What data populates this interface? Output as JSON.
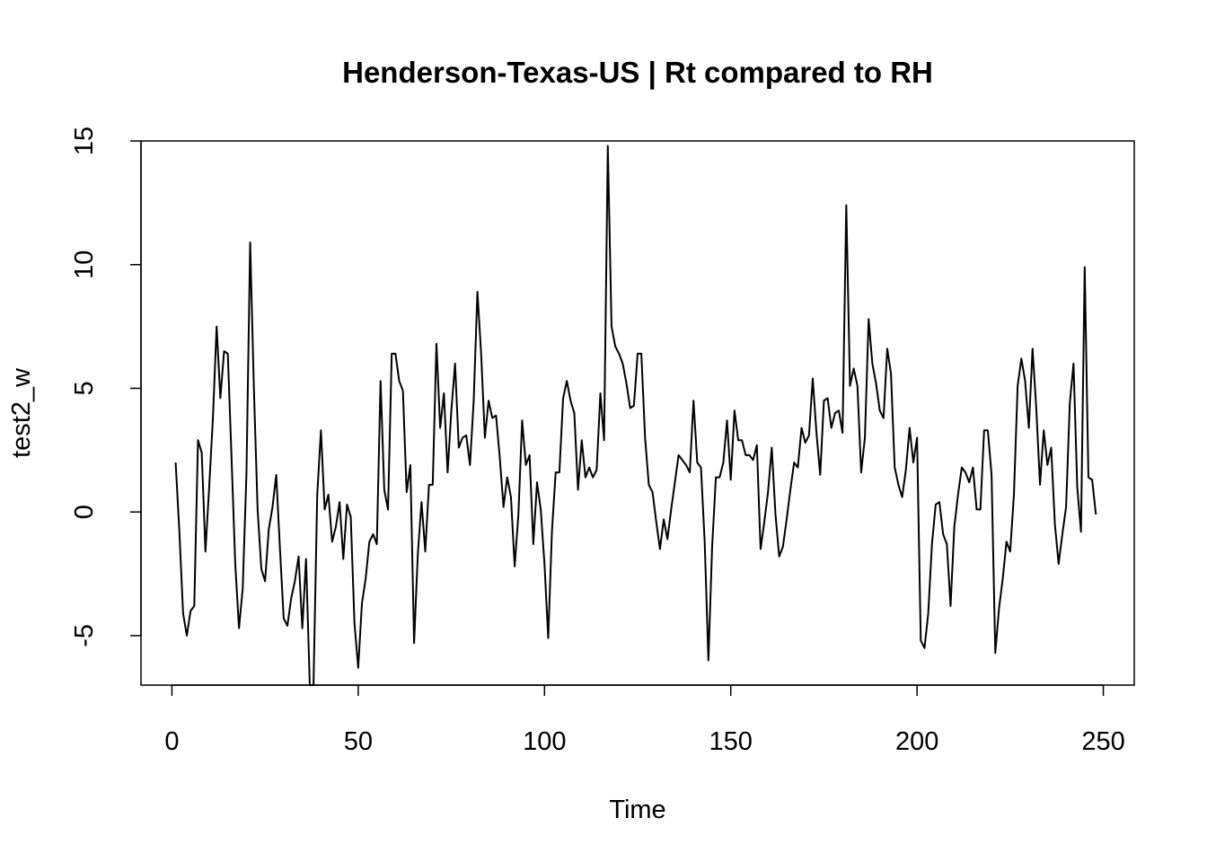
{
  "chart_data": {
    "type": "line",
    "title": "Henderson-Texas-US | Rt compared to RH",
    "xlabel": "Time",
    "ylabel": "test2_w",
    "xlim": [
      -8.3,
      258.3
    ],
    "ylim": [
      -7.0,
      15.0
    ],
    "x_ticks": [
      0,
      50,
      100,
      150,
      200,
      250
    ],
    "x_tick_labels": [
      "0",
      "50",
      "100",
      "150",
      "200",
      "250"
    ],
    "y_ticks": [
      -5,
      0,
      5,
      10,
      15
    ],
    "y_tick_labels": [
      "-5",
      "0",
      "5",
      "10",
      "15"
    ],
    "grid": false,
    "legend": "none",
    "line_color": "#000000",
    "x_start": 1,
    "x_step": 1,
    "values": [
      2.0,
      -0.8,
      -4.1,
      -5.0,
      -4.0,
      -3.8,
      2.9,
      2.4,
      -1.6,
      1.0,
      3.8,
      7.5,
      4.6,
      6.5,
      6.4,
      2.2,
      -2.1,
      -4.7,
      -3.1,
      1.5,
      10.9,
      5.0,
      0.1,
      -2.3,
      -2.8,
      -0.7,
      0.2,
      1.5,
      -1.5,
      -4.3,
      -4.6,
      -3.5,
      -2.8,
      -1.8,
      -4.7,
      -1.9,
      -7.0,
      -7.0,
      0.7,
      3.3,
      0.1,
      0.7,
      -1.2,
      -0.6,
      0.4,
      -1.9,
      0.3,
      -0.2,
      -4.5,
      -6.3,
      -3.7,
      -2.7,
      -1.2,
      -0.9,
      -1.3,
      5.3,
      0.9,
      0.1,
      6.4,
      6.4,
      5.3,
      4.9,
      0.8,
      1.9,
      -5.3,
      -1.7,
      0.4,
      -1.6,
      1.1,
      1.1,
      6.8,
      3.4,
      4.8,
      1.6,
      4.1,
      6.0,
      2.6,
      3.0,
      3.1,
      1.9,
      4.5,
      8.9,
      6.4,
      3.0,
      4.5,
      3.8,
      3.9,
      2.2,
      0.2,
      1.4,
      0.6,
      -2.2,
      -0.1,
      3.7,
      1.9,
      2.3,
      -1.3,
      1.2,
      0.1,
      -2.1,
      -5.1,
      -0.8,
      1.6,
      1.6,
      4.6,
      5.3,
      4.5,
      4.0,
      0.9,
      2.9,
      1.4,
      1.8,
      1.4,
      1.7,
      4.8,
      2.9,
      14.8,
      7.5,
      6.7,
      6.4,
      6.0,
      5.2,
      4.2,
      4.3,
      6.4,
      6.4,
      3.0,
      1.1,
      0.8,
      -0.4,
      -1.5,
      -0.3,
      -1.1,
      0.1,
      1.2,
      2.3,
      2.1,
      1.9,
      1.6,
      4.5,
      2.0,
      1.8,
      -1.2,
      -6.0,
      -1.4,
      1.4,
      1.4,
      2.0,
      3.7,
      1.3,
      4.1,
      2.9,
      2.9,
      2.3,
      2.3,
      2.1,
      2.7,
      -1.5,
      -0.4,
      0.8,
      2.6,
      -0.1,
      -1.8,
      -1.4,
      -0.3,
      0.9,
      2.0,
      1.8,
      3.4,
      2.8,
      3.1,
      5.4,
      3.2,
      1.5,
      4.5,
      4.6,
      3.4,
      4.0,
      4.1,
      3.2,
      12.4,
      5.1,
      5.8,
      5.1,
      1.6,
      3.0,
      7.8,
      6.0,
      5.2,
      4.1,
      3.8,
      6.6,
      5.6,
      1.8,
      1.1,
      0.6,
      1.7,
      3.4,
      2.0,
      3.0,
      -5.2,
      -5.5,
      -4.1,
      -1.3,
      0.3,
      0.4,
      -0.9,
      -1.3,
      -3.8,
      -0.6,
      0.7,
      1.8,
      1.6,
      1.2,
      1.8,
      0.1,
      0.1,
      3.3,
      3.3,
      1.5,
      -5.7,
      -3.9,
      -2.7,
      -1.2,
      -1.6,
      0.7,
      5.1,
      6.2,
      5.3,
      3.4,
      6.6,
      4.2,
      1.1,
      3.3,
      1.9,
      2.6,
      -0.5,
      -2.1,
      -0.9,
      0.2,
      4.4,
      6.0,
      1.0,
      -0.8,
      9.9,
      1.4,
      1.3,
      -0.1
    ]
  }
}
